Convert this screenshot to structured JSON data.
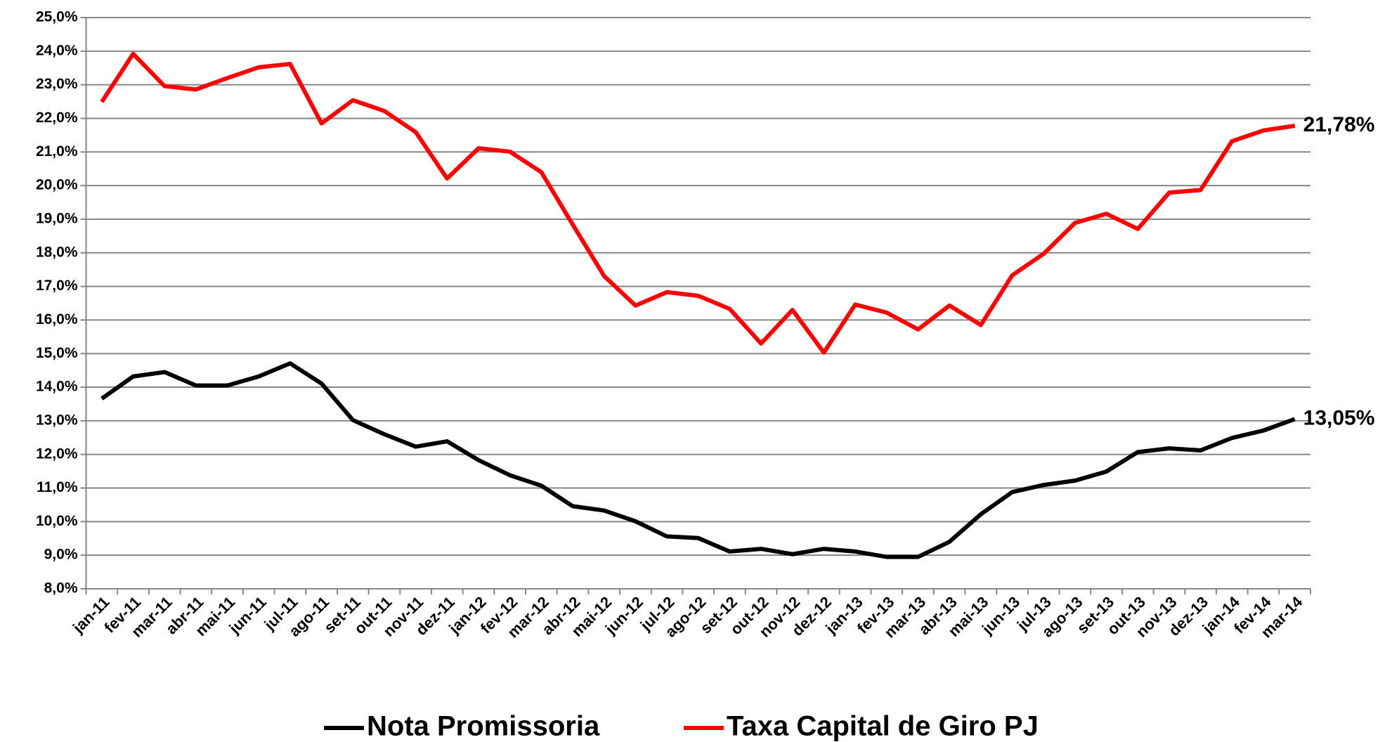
{
  "chart_data": {
    "type": "line",
    "categories": [
      "jan-11",
      "fev-11",
      "mar-11",
      "abr-11",
      "mai-11",
      "jun-11",
      "jul-11",
      "ago-11",
      "set-11",
      "out-11",
      "nov-11",
      "dez-11",
      "jan-12",
      "fev-12",
      "mar-12",
      "abr-12",
      "mai-12",
      "jun-12",
      "jul-12",
      "ago-12",
      "set-12",
      "out-12",
      "nov-12",
      "dez-12",
      "jan-13",
      "fev-13",
      "mar-13",
      "abr-13",
      "mai-13",
      "jun-13",
      "jul-13",
      "ago-13",
      "set-13",
      "out-13",
      "nov-13",
      "dez-13",
      "jan-14",
      "fev-14",
      "mar-14"
    ],
    "series": [
      {
        "name": "Nota Promissoria",
        "color": "#000000",
        "values": [
          13.66,
          14.32,
          14.45,
          14.05,
          14.05,
          14.32,
          14.71,
          14.11,
          13.02,
          12.6,
          12.23,
          12.39,
          11.83,
          11.38,
          11.07,
          10.46,
          10.33,
          10.01,
          9.56,
          9.51,
          9.11,
          9.19,
          9.03,
          9.19,
          9.11,
          8.95,
          8.95,
          9.4,
          10.22,
          10.88,
          11.09,
          11.22,
          11.49,
          12.07,
          12.18,
          12.12,
          12.49,
          12.71,
          13.05
        ],
        "value_labels": [
          null,
          null,
          null,
          null,
          null,
          null,
          null,
          null,
          null,
          null,
          null,
          null,
          null,
          null,
          null,
          null,
          null,
          null,
          null,
          null,
          null,
          null,
          null,
          null,
          null,
          null,
          null,
          null,
          null,
          null,
          null,
          null,
          null,
          null,
          null,
          null,
          null,
          null,
          "13,05%"
        ]
      },
      {
        "name": "Taxa Capital de Giro PJ",
        "color": "#ff0000",
        "values": [
          22.49,
          23.92,
          22.96,
          22.86,
          23.2,
          23.52,
          23.62,
          21.85,
          22.54,
          22.22,
          21.59,
          20.21,
          21.11,
          21.01,
          20.4,
          18.84,
          17.31,
          16.43,
          16.83,
          16.72,
          16.33,
          15.3,
          16.3,
          15.03,
          16.46,
          16.22,
          15.72,
          16.43,
          15.85,
          17.33,
          17.97,
          18.89,
          19.16,
          18.71,
          19.79,
          19.87,
          21.32,
          21.64,
          21.78
        ],
        "value_labels": [
          null,
          null,
          null,
          null,
          null,
          null,
          null,
          null,
          null,
          null,
          null,
          null,
          null,
          null,
          null,
          null,
          null,
          null,
          null,
          null,
          null,
          null,
          null,
          null,
          null,
          null,
          null,
          null,
          null,
          null,
          null,
          null,
          null,
          null,
          null,
          null,
          null,
          null,
          "21,78%"
        ]
      }
    ],
    "ylim": [
      8,
      25
    ],
    "yticks": [
      {
        "value": 8,
        "label": "8,0%"
      },
      {
        "value": 9,
        "label": "9,0%"
      },
      {
        "value": 10,
        "label": "10,0%"
      },
      {
        "value": 11,
        "label": "11,0%"
      },
      {
        "value": 12,
        "label": "12,0%"
      },
      {
        "value": 13,
        "label": "13,0%"
      },
      {
        "value": 14,
        "label": "14,0%"
      },
      {
        "value": 15,
        "label": "15,0%"
      },
      {
        "value": 16,
        "label": "16,0%"
      },
      {
        "value": 17,
        "label": "17,0%"
      },
      {
        "value": 18,
        "label": "18,0%"
      },
      {
        "value": 19,
        "label": "19,0%"
      },
      {
        "value": 20,
        "label": "20,0%"
      },
      {
        "value": 21,
        "label": "21,0%"
      },
      {
        "value": 22,
        "label": "22,0%"
      },
      {
        "value": 23,
        "label": "23,0%"
      },
      {
        "value": 24,
        "label": "24,0%"
      },
      {
        "value": 25,
        "label": "25,0%"
      }
    ],
    "grid": true,
    "legend": "bottom"
  }
}
